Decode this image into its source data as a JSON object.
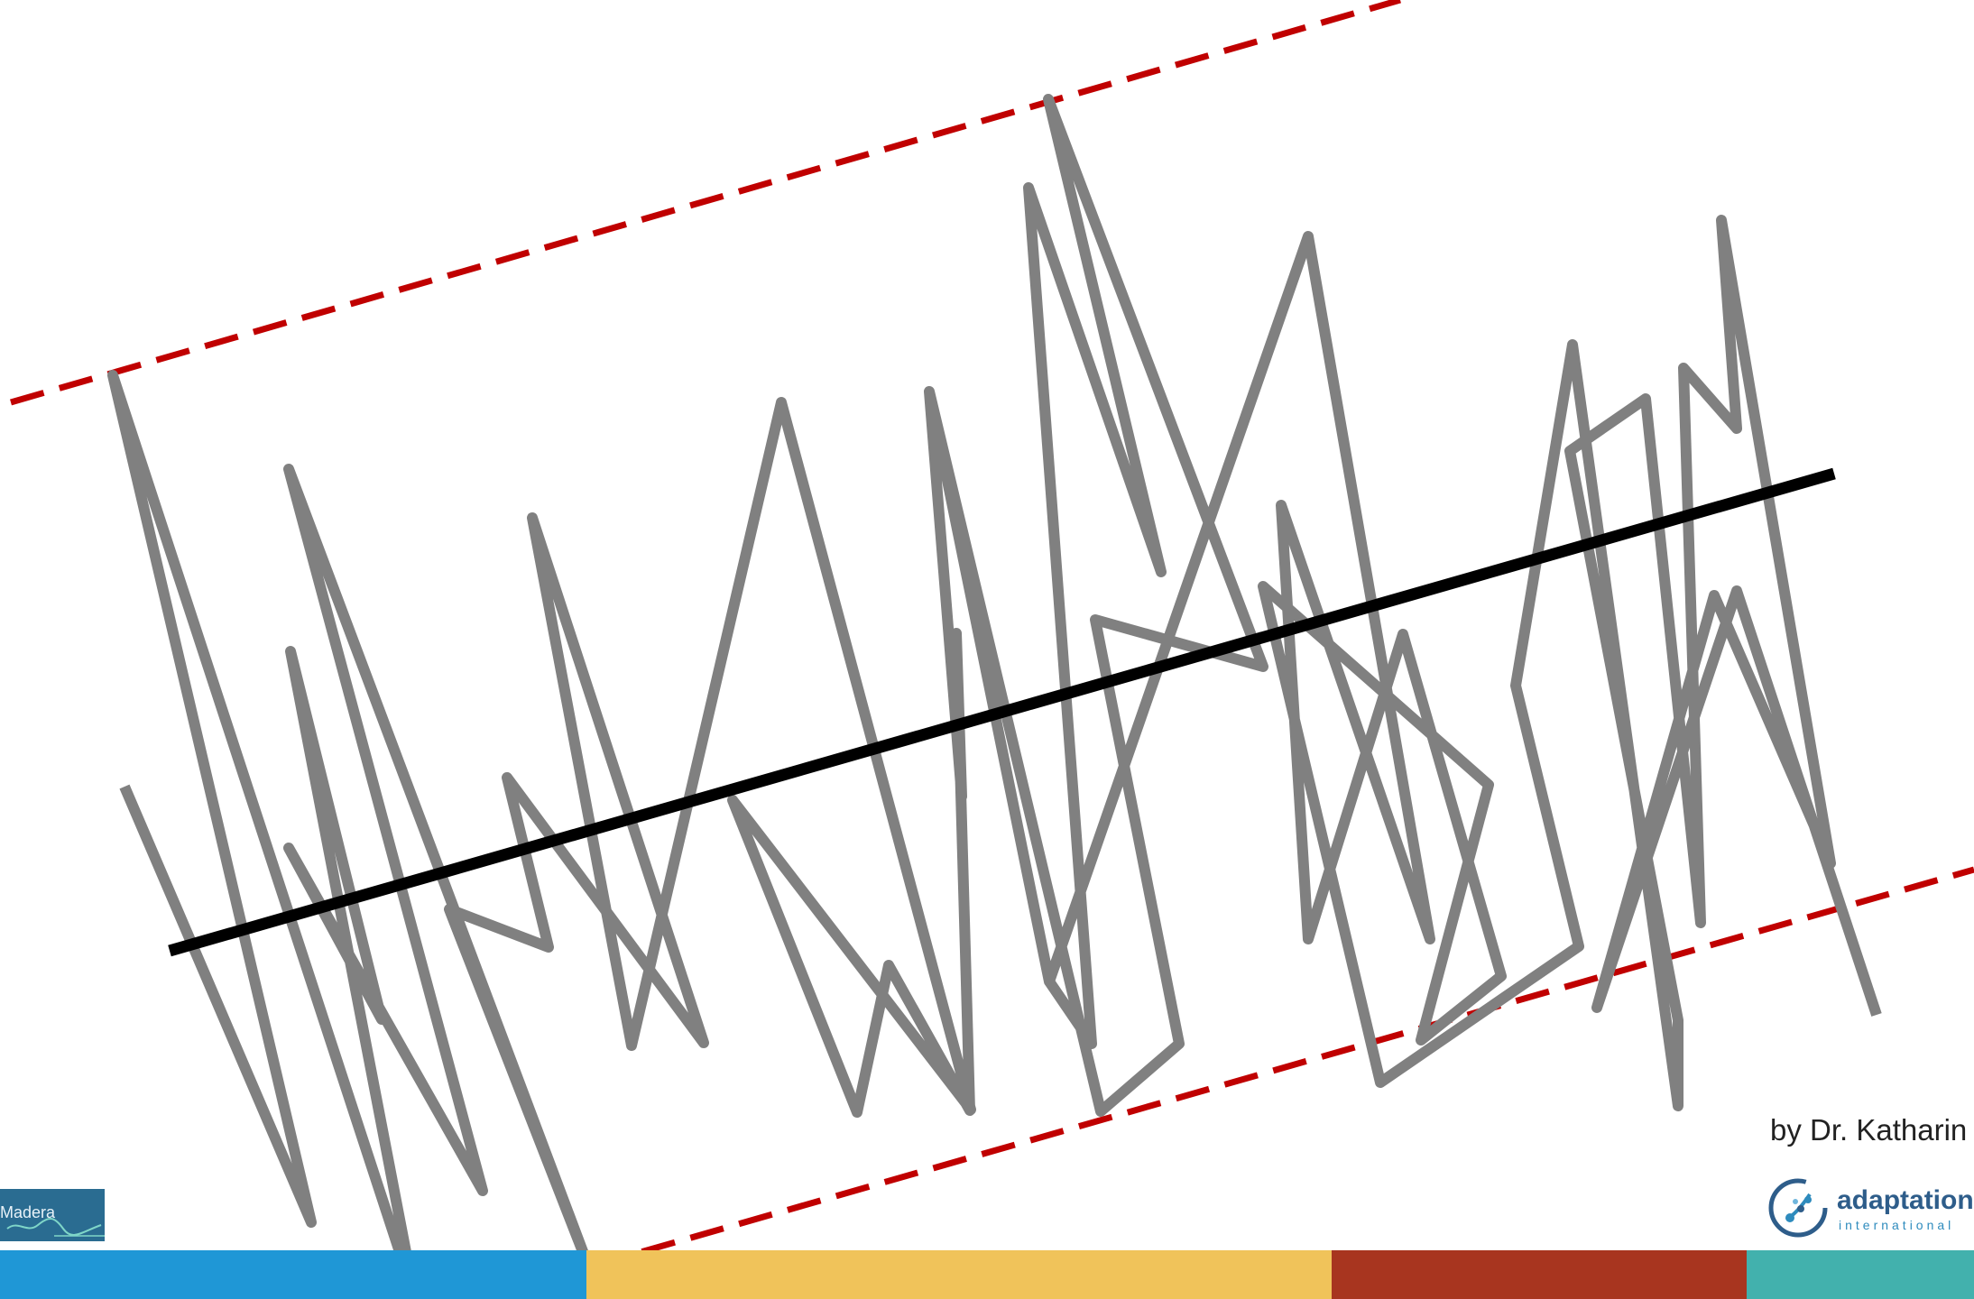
{
  "footer": {
    "byline": "by Dr. Katharin",
    "colors": {
      "blue": "#1f97d6",
      "yellow": "#f0c35a",
      "rust": "#a8351f",
      "teal": "#42b1ad"
    }
  },
  "logos": {
    "madera": {
      "text": "Madera",
      "background": "#2a6c91"
    },
    "adaptation": {
      "wordmark": "adaptation",
      "subtext": "international"
    }
  },
  "diagram": {
    "signal_color": "#808080",
    "trend_color": "#000000",
    "envelope_color": "#c00000"
  }
}
